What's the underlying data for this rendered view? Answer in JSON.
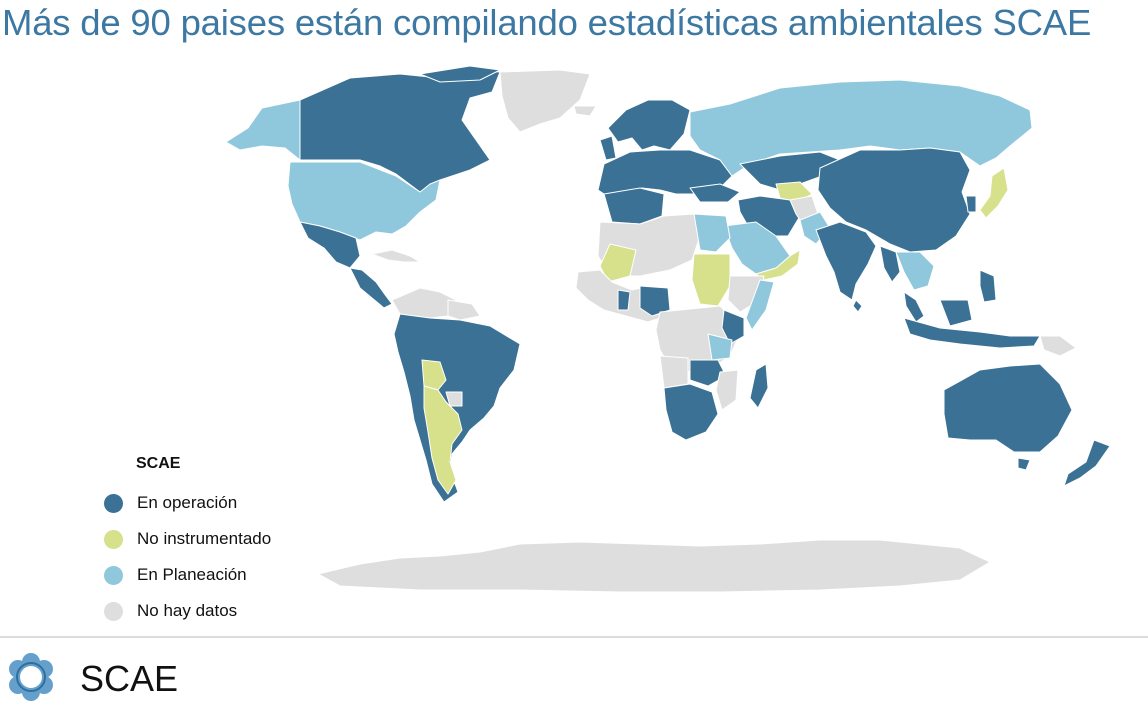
{
  "title": "Más de 90 paises están compilando estadísticas ambientales SCAE",
  "legend": {
    "title": "SCAE",
    "items": [
      {
        "label": "En operación",
        "color": "#3a7194"
      },
      {
        "label": "No instrumentado",
        "color": "#d7e08a"
      },
      {
        "label": "En Planeación",
        "color": "#8fc8dc"
      },
      {
        "label": "No hay datos",
        "color": "#dedede"
      }
    ]
  },
  "footer": {
    "brand": "SCAE",
    "logo_icon": "scae-flower-logo-icon"
  }
}
